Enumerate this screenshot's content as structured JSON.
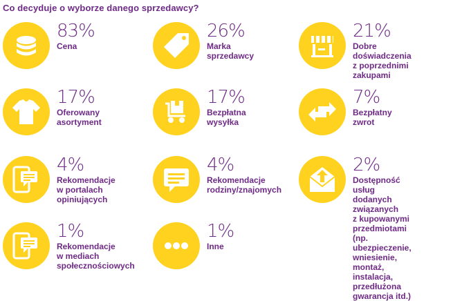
{
  "title": "Co decyduje o wyborze danego sprzedawcy?",
  "colors": {
    "accent": "#ffd21f",
    "text": "#6e2a86",
    "icon": "#ffffff"
  },
  "chart_data": {
    "type": "table",
    "categories": [
      "Cena",
      "Marka sprzedawcy",
      "Dobre doświadczenia z poprzednimi zakupami",
      "Oferowany asortyment",
      "Bezpłatna wysyłka",
      "Bezpłatny zwrot",
      "Rekomendacje w portalach opiniujących",
      "Rekomendacje rodziny/znajomych",
      "Dostępność usług dodanych związanych z kupowanymi przedmiotami (np. ubezpieczenie, wniesienie, montaż, instalacja, przedłużona gwarancja itd.)",
      "Rekomendacje w mediach społecznościowych",
      "Inne"
    ],
    "values": [
      83,
      26,
      21,
      17,
      17,
      7,
      4,
      4,
      2,
      1,
      1
    ]
  },
  "items": [
    {
      "pct": "83%",
      "label": "Cena",
      "icon": "coins-icon"
    },
    {
      "pct": "26%",
      "label": "Marka\nsprzedawcy",
      "icon": "tag-icon"
    },
    {
      "pct": "21%",
      "label": "Dobre doświadczenia\nz poprzednimi zakupami",
      "icon": "shop-icon"
    },
    {
      "pct": "17%",
      "label": "Oferowany\nasortyment",
      "icon": "tshirt-icon"
    },
    {
      "pct": "17%",
      "label": "Bezpłatna\nwysyłka",
      "icon": "delivery-cart-icon"
    },
    {
      "pct": "7%",
      "label": "Bezpłatny zwrot",
      "icon": "return-arrows-icon"
    },
    {
      "pct": "4%",
      "label": "Rekomendacje\nw portalach\nopiniujących",
      "icon": "phone-chat-icon"
    },
    {
      "pct": "4%",
      "label": "Rekomendacje\nrodziny/znajomych",
      "icon": "chat-bubble-icon"
    },
    {
      "pct": "2%",
      "label": "Dostępność usług\ndodanych związanych\nz kupowanymi\nprzedmiotami\n(np. ubezpieczenie,\nwniesienie, montaż,\ninstalacja, przedłużona\ngwarancja itd.)",
      "icon": "envelope-icon"
    },
    {
      "pct": "1%",
      "label": "Rekomendacje\nw mediach\nspołecznościowych",
      "icon": "phone-chat-icon"
    },
    {
      "pct": "1%",
      "label": "Inne",
      "icon": "dots-icon"
    }
  ]
}
